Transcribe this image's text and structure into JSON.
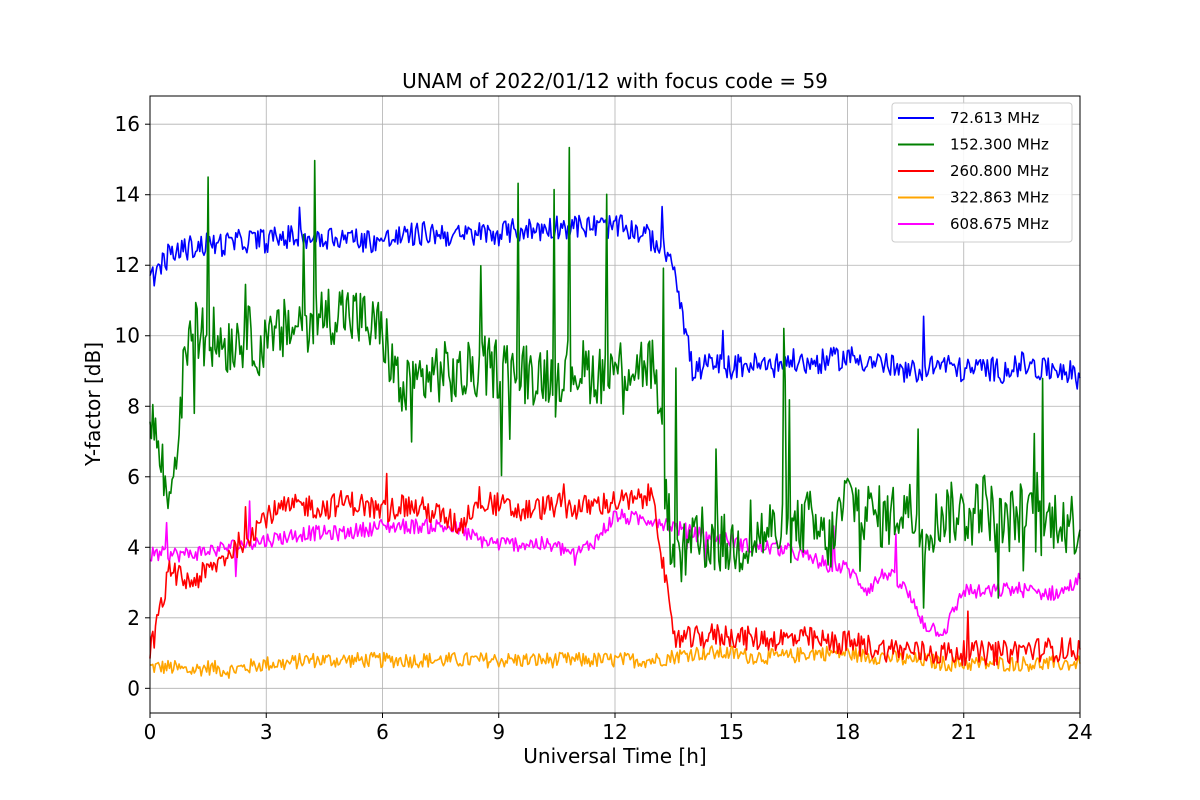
{
  "chart_data": {
    "type": "line",
    "title": "UNAM of 2022/01/12 with focus code = 59",
    "xlabel": "Universal Time [h]",
    "ylabel": "Y-factor [dB]",
    "xlim": [
      0,
      24
    ],
    "ylim": [
      -0.7,
      16.8
    ],
    "x_ticks": [
      0,
      3,
      6,
      9,
      12,
      15,
      18,
      21,
      24
    ],
    "y_ticks": [
      0,
      2,
      4,
      6,
      8,
      10,
      12,
      14,
      16
    ],
    "grid": true,
    "legend_position": "top-right",
    "x": [
      0,
      0.5,
      1,
      1.5,
      2,
      2.5,
      3,
      3.5,
      4,
      4.5,
      5,
      5.5,
      6,
      6.5,
      7,
      7.5,
      8,
      8.5,
      9,
      9.5,
      10,
      10.5,
      11,
      11.5,
      12,
      12.5,
      13,
      13.5,
      14,
      14.5,
      15,
      15.5,
      16,
      16.5,
      17,
      17.5,
      18,
      18.5,
      19,
      19.5,
      20,
      20.5,
      21,
      21.5,
      22,
      22.5,
      23,
      23.5,
      24
    ],
    "series": [
      {
        "name": " 72.613 MHz",
        "color": "#0000ff",
        "values": [
          11.6,
          12.3,
          12.5,
          12.6,
          12.6,
          12.7,
          12.7,
          12.8,
          12.8,
          12.8,
          12.8,
          12.7,
          12.7,
          12.8,
          12.9,
          12.9,
          12.8,
          12.9,
          12.9,
          13.0,
          13.0,
          13.1,
          13.1,
          13.1,
          13.1,
          13.0,
          12.7,
          12.2,
          9.0,
          9.2,
          9.1,
          9.2,
          9.1,
          9.3,
          9.2,
          9.3,
          9.4,
          9.3,
          9.2,
          8.9,
          9.1,
          9.2,
          9.0,
          9.1,
          9.0,
          9.2,
          9.0,
          9.1,
          8.8
        ]
      },
      {
        "name": "152.300 MHz",
        "color": "#008000",
        "values": [
          8.0,
          5.2,
          10.2,
          10.0,
          9.8,
          10.0,
          9.6,
          10.2,
          10.4,
          10.6,
          10.7,
          10.4,
          10.1,
          8.3,
          8.8,
          9.0,
          8.8,
          9.1,
          9.1,
          9.0,
          8.9,
          9.0,
          9.1,
          8.9,
          9.1,
          9.2,
          9.2,
          3.5,
          4.0,
          4.2,
          4.0,
          4.2,
          4.5,
          4.3,
          4.8,
          4.0,
          5.5,
          5.0,
          4.8,
          5.2,
          4.5,
          5.0,
          4.9,
          5.3,
          4.6,
          5.0,
          4.5,
          5.0,
          4.5
        ]
      },
      {
        "name": "260.800 MHz",
        "color": "#ff0000",
        "values": [
          1.0,
          3.3,
          3.0,
          3.3,
          3.8,
          4.3,
          4.9,
          5.1,
          5.2,
          5.1,
          5.3,
          5.2,
          5.0,
          5.2,
          5.1,
          4.9,
          4.6,
          5.4,
          5.2,
          5.0,
          5.1,
          5.2,
          5.1,
          5.2,
          5.3,
          5.3,
          5.5,
          1.4,
          1.4,
          1.5,
          1.5,
          1.4,
          1.4,
          1.4,
          1.4,
          1.3,
          1.3,
          1.2,
          1.1,
          1.1,
          1.0,
          1.0,
          1.0,
          1.0,
          1.0,
          1.1,
          1.1,
          1.1,
          1.1
        ]
      },
      {
        "name": "322.863 MHz",
        "color": "#ffa500",
        "values": [
          0.6,
          0.6,
          0.5,
          0.6,
          0.5,
          0.6,
          0.7,
          0.7,
          0.8,
          0.8,
          0.8,
          0.8,
          0.8,
          0.8,
          0.8,
          0.8,
          0.8,
          0.8,
          0.8,
          0.8,
          0.8,
          0.8,
          0.8,
          0.8,
          0.8,
          0.8,
          0.8,
          0.9,
          1.0,
          1.0,
          1.0,
          0.9,
          0.9,
          0.9,
          1.0,
          1.0,
          1.0,
          0.9,
          0.9,
          0.8,
          0.8,
          0.7,
          0.7,
          0.7,
          0.7,
          0.7,
          0.7,
          0.7,
          0.7
        ]
      },
      {
        "name": "608.675 MHz",
        "color": "#ff00ff",
        "values": [
          3.8,
          3.8,
          3.8,
          3.9,
          4.0,
          4.1,
          4.2,
          4.3,
          4.4,
          4.4,
          4.4,
          4.5,
          4.6,
          4.6,
          4.6,
          4.6,
          4.5,
          4.2,
          4.1,
          4.1,
          4.1,
          4.0,
          3.8,
          4.2,
          4.9,
          4.8,
          4.8,
          4.6,
          4.4,
          4.3,
          4.2,
          4.0,
          4.0,
          3.9,
          3.7,
          3.5,
          3.4,
          2.8,
          3.3,
          2.8,
          1.8,
          1.6,
          2.8,
          2.7,
          2.8,
          2.8,
          2.7,
          2.7,
          3.1
        ]
      }
    ]
  }
}
